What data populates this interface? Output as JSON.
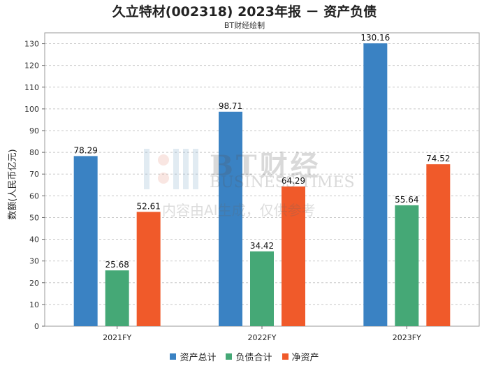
{
  "title": "久立特材(002318) 2023年报 － 资产负债",
  "subtitle": "BT财经绘制",
  "watermark": {
    "line1": "BT财经",
    "line2": "BUSINESS TIMES",
    "line3": "内容由AI生成，仅供参考"
  },
  "chart_data": {
    "type": "bar",
    "categories": [
      "2021FY",
      "2022FY",
      "2023FY"
    ],
    "series": [
      {
        "name": "资产总计",
        "color": "#3a82c3",
        "values": [
          78.29,
          98.71,
          130.16
        ]
      },
      {
        "name": "负债合计",
        "color": "#45a876",
        "values": [
          25.68,
          34.42,
          55.64
        ]
      },
      {
        "name": "净资产",
        "color": "#f05a2a",
        "values": [
          52.61,
          64.29,
          74.52
        ]
      }
    ],
    "ylabel": "数额(人民币亿元)",
    "ylim": [
      0,
      135
    ],
    "yticks": [
      0,
      10,
      20,
      30,
      40,
      50,
      60,
      70,
      80,
      90,
      100,
      110,
      120,
      130
    ],
    "grid": true,
    "legend_position": "bottom"
  }
}
